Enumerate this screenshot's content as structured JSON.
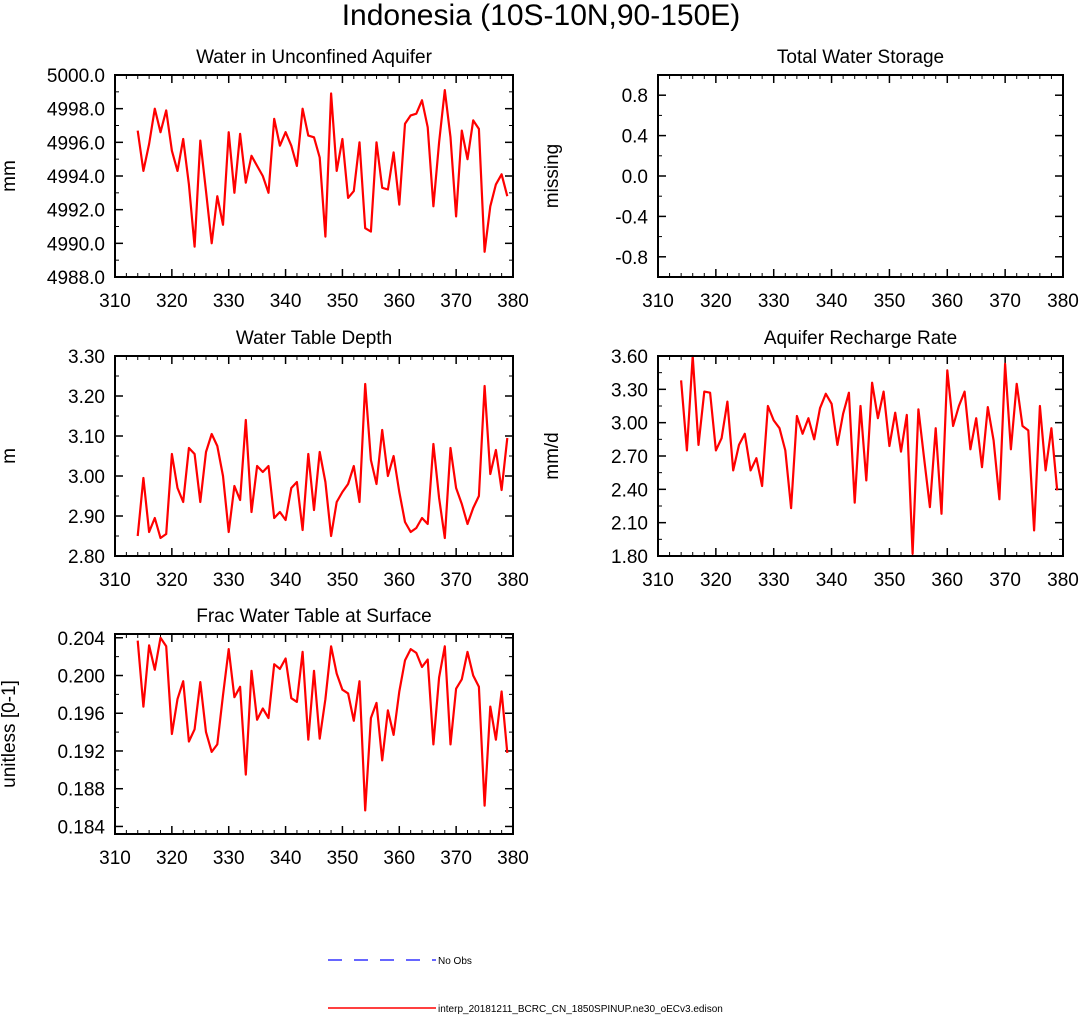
{
  "figure": {
    "title": "Indonesia (10S-10N,90-150E)"
  },
  "legend": {
    "items": [
      {
        "label": "No Obs",
        "color": "#3333ff",
        "dashed": true
      },
      {
        "label": "interp_20181211_BCRC_CN_1850SPINUP.ne30_oECv3.edison",
        "color": "#ff0000",
        "dashed": false
      }
    ]
  },
  "chart_data": [
    {
      "type": "line",
      "title": "Water in Unconfined Aquifer",
      "xlabel": "",
      "ylabel": "mm",
      "xlim": [
        310,
        380
      ],
      "ylim": [
        4988.0,
        5000.0
      ],
      "xticks": [
        310,
        320,
        330,
        340,
        350,
        360,
        370,
        380
      ],
      "yticks": [
        4988.0,
        4990.0,
        4992.0,
        4994.0,
        4996.0,
        4998.0,
        5000.0
      ],
      "ytick_decimals": 1,
      "color": "#ff0000",
      "x_start": 314,
      "values": [
        4996.7,
        4994.3,
        4995.9,
        4998.0,
        4996.6,
        4997.9,
        4995.5,
        4994.3,
        4996.2,
        4993.5,
        4989.8,
        4996.1,
        4993.1,
        4990.0,
        4992.8,
        4991.1,
        4996.6,
        4993.0,
        4996.5,
        4993.6,
        4995.2,
        4994.6,
        4994.0,
        4993.0,
        4997.4,
        4995.8,
        4996.6,
        4995.8,
        4994.6,
        4998.0,
        4996.4,
        4996.3,
        4995.1,
        4990.4,
        4998.9,
        4994.3,
        4996.2,
        4992.7,
        4993.1,
        4996.0,
        4990.9,
        4990.7,
        4996.0,
        4993.3,
        4993.2,
        4995.4,
        4992.3,
        4997.1,
        4997.6,
        4997.7,
        4998.5,
        4996.9,
        4992.2,
        4996.0,
        4999.1,
        4996.3,
        4991.6,
        4996.7,
        4995.0,
        4997.3,
        4996.8,
        4989.5,
        4992.2,
        4993.5,
        4994.1,
        4992.8
      ]
    },
    {
      "type": "line",
      "title": "Total Water Storage",
      "xlabel": "",
      "ylabel": "missing",
      "xlim": [
        310,
        380
      ],
      "ylim": [
        -1.0,
        1.0
      ],
      "xticks": [
        310,
        320,
        330,
        340,
        350,
        360,
        370,
        380
      ],
      "yticks": [
        -0.8,
        -0.4,
        0.0,
        0.4,
        0.8
      ],
      "ytick_decimals": 1,
      "color": "#ff0000",
      "x_start": 314,
      "values": []
    },
    {
      "type": "line",
      "title": "Water Table Depth",
      "xlabel": "",
      "ylabel": "m",
      "xlim": [
        310,
        380
      ],
      "ylim": [
        2.8,
        3.3
      ],
      "xticks": [
        310,
        320,
        330,
        340,
        350,
        360,
        370,
        380
      ],
      "yticks": [
        2.8,
        2.9,
        3.0,
        3.1,
        3.2,
        3.3
      ],
      "ytick_decimals": 2,
      "color": "#ff0000",
      "x_start": 314,
      "values": [
        2.85,
        2.995,
        2.86,
        2.895,
        2.845,
        2.855,
        3.055,
        2.97,
        2.935,
        3.07,
        3.055,
        2.935,
        3.06,
        3.105,
        3.075,
        3.0,
        2.86,
        2.975,
        2.94,
        3.14,
        2.91,
        3.025,
        3.01,
        3.025,
        2.895,
        2.91,
        2.89,
        2.97,
        2.985,
        2.865,
        3.055,
        2.915,
        3.06,
        2.985,
        2.85,
        2.935,
        2.96,
        2.98,
        3.025,
        2.935,
        3.23,
        3.04,
        2.98,
        3.115,
        3.0,
        3.05,
        2.96,
        2.885,
        2.86,
        2.87,
        2.895,
        2.88,
        3.08,
        2.945,
        2.845,
        3.07,
        2.97,
        2.93,
        2.88,
        2.92,
        2.95,
        3.225,
        3.005,
        3.065,
        2.965,
        3.095
      ]
    },
    {
      "type": "line",
      "title": "Aquifer Recharge Rate",
      "xlabel": "",
      "ylabel": "mm/d",
      "xlim": [
        310,
        380
      ],
      "ylim": [
        1.8,
        3.6
      ],
      "xticks": [
        310,
        320,
        330,
        340,
        350,
        360,
        370,
        380
      ],
      "yticks": [
        1.8,
        2.1,
        2.4,
        2.7,
        3.0,
        3.3,
        3.6
      ],
      "ytick_decimals": 2,
      "color": "#ff0000",
      "x_start": 314,
      "values": [
        3.38,
        2.75,
        3.6,
        2.8,
        3.28,
        3.27,
        2.75,
        2.86,
        3.19,
        2.57,
        2.8,
        2.9,
        2.57,
        2.68,
        2.43,
        3.15,
        3.02,
        2.95,
        2.75,
        2.23,
        3.06,
        2.9,
        3.04,
        2.85,
        3.13,
        3.26,
        3.17,
        2.8,
        3.08,
        3.27,
        2.28,
        3.15,
        2.48,
        3.36,
        3.04,
        3.28,
        2.79,
        3.09,
        2.74,
        3.07,
        1.82,
        3.12,
        2.68,
        2.24,
        2.95,
        2.18,
        3.47,
        2.97,
        3.15,
        3.28,
        2.76,
        3.04,
        2.6,
        3.14,
        2.84,
        2.31,
        3.53,
        2.76,
        3.35,
        2.97,
        2.93,
        2.03,
        3.15,
        2.57,
        2.95,
        2.39
      ]
    },
    {
      "type": "line",
      "title": "Frac Water Table at Surface",
      "xlabel": "",
      "ylabel": "unitless [0-1]",
      "xlim": [
        310,
        380
      ],
      "ylim": [
        0.1832,
        0.2044
      ],
      "xticks": [
        310,
        320,
        330,
        340,
        350,
        360,
        370,
        380
      ],
      "yticks": [
        0.184,
        0.188,
        0.192,
        0.196,
        0.2,
        0.204
      ],
      "ytick_decimals": 3,
      "color": "#ff0000",
      "x_start": 314,
      "values": [
        0.2037,
        0.1967,
        0.2032,
        0.2006,
        0.204,
        0.2031,
        0.1938,
        0.1975,
        0.1994,
        0.193,
        0.1943,
        0.1993,
        0.194,
        0.1919,
        0.1927,
        0.1979,
        0.2028,
        0.1977,
        0.1988,
        0.1895,
        0.2005,
        0.1953,
        0.1965,
        0.1955,
        0.2012,
        0.2007,
        0.2018,
        0.1976,
        0.1972,
        0.2025,
        0.1932,
        0.2005,
        0.1933,
        0.1975,
        0.2031,
        0.2002,
        0.1985,
        0.1981,
        0.1952,
        0.1994,
        0.1857,
        0.1955,
        0.1971,
        0.191,
        0.1963,
        0.1937,
        0.1983,
        0.2016,
        0.2028,
        0.2024,
        0.2009,
        0.2017,
        0.1927,
        0.1998,
        0.2031,
        0.1927,
        0.1986,
        0.1996,
        0.2025,
        0.2,
        0.1988,
        0.1862,
        0.1967,
        0.1932,
        0.1983,
        0.1918
      ]
    }
  ]
}
